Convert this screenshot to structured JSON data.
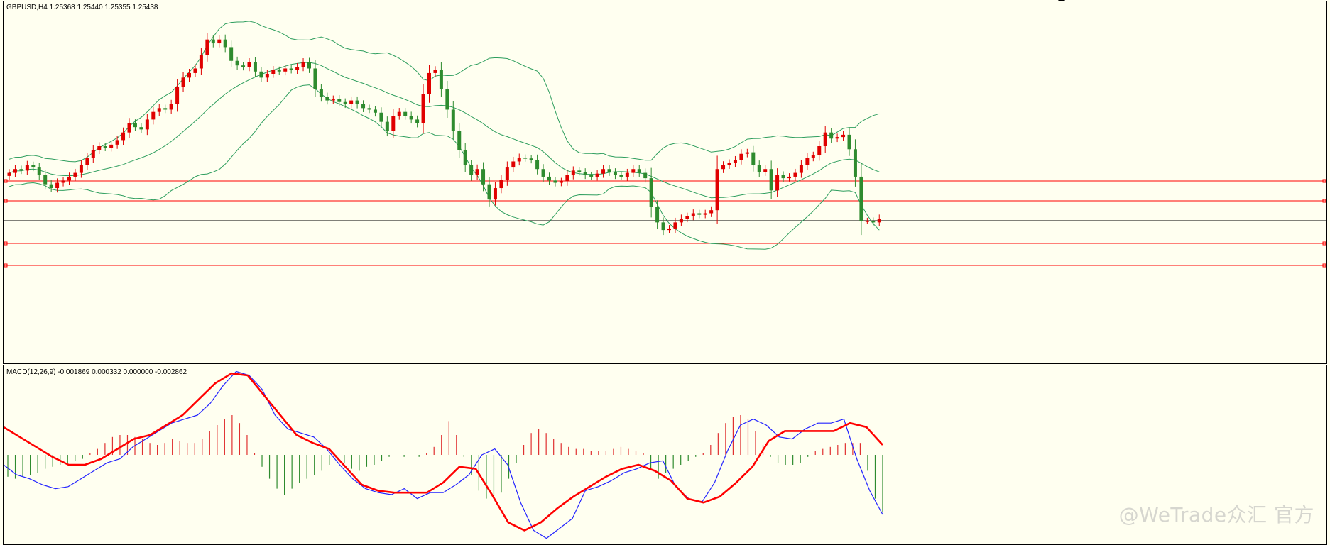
{
  "symbol_header": "GBPUSD,H4  1.25368 1.25440 1.25355 1.25438",
  "macd_header": "MACD(12,26,9) -0.001869 0.000332 0.000000 -0.002862",
  "watermark": "@WeTrade众汇 官方",
  "colors": {
    "background": "#fffff0",
    "bull_candle": "#e00000",
    "bear_candle": "#2e8b2e",
    "bollinger": "#2e9e5e",
    "horizontal_lines": "#ff0000",
    "current_price_line": "#000000",
    "macd_line": "#2323ff",
    "signal_line": "#ff0000",
    "histogram_positive": "#e03030",
    "histogram_negative": "#2e8b2e"
  },
  "chart_data": [
    {
      "type": "candlestick",
      "symbol": "GBPUSD",
      "timeframe": "H4",
      "last_bar": {
        "open": 1.25368,
        "high": 1.2544,
        "low": 1.25355,
        "close": 1.25438
      },
      "ylim": [
        1.2475,
        1.295
      ],
      "grid": false,
      "close_series": [
        1.2725,
        1.273,
        1.2728,
        1.2735,
        1.2732,
        1.2722,
        1.271,
        1.2705,
        1.2712,
        1.2715,
        1.272,
        1.2725,
        1.2735,
        1.2745,
        1.2755,
        1.276,
        1.2758,
        1.2762,
        1.2768,
        1.2778,
        1.279,
        1.2785,
        1.2782,
        1.2795,
        1.2805,
        1.281,
        1.2808,
        1.2815,
        1.2838,
        1.285,
        1.2856,
        1.2862,
        1.288,
        1.29,
        1.2895,
        1.29,
        1.289,
        1.2872,
        1.2866,
        1.2864,
        1.287,
        1.2858,
        1.285,
        1.2855,
        1.286,
        1.2858,
        1.2862,
        1.286,
        1.2864,
        1.287,
        1.2862,
        1.2835,
        1.2825,
        1.282,
        1.2822,
        1.2818,
        1.2815,
        1.282,
        1.2815,
        1.281,
        1.2808,
        1.2804,
        1.2792,
        1.278,
        1.28,
        1.2805,
        1.28,
        1.2795,
        1.279,
        1.2828,
        1.2856,
        1.286,
        1.2835,
        1.2808,
        1.278,
        1.2755,
        1.2735,
        1.2722,
        1.273,
        1.271,
        1.269,
        1.2705,
        1.2716,
        1.2732,
        1.274,
        1.2745,
        1.2744,
        1.2742,
        1.273,
        1.272,
        1.2715,
        1.2712,
        1.2714,
        1.2722,
        1.2728,
        1.2726,
        1.2722,
        1.272,
        1.2724,
        1.273,
        1.2726,
        1.2722,
        1.272,
        1.2725,
        1.273,
        1.2725,
        1.2718,
        1.268,
        1.266,
        1.265,
        1.2652,
        1.266,
        1.2665,
        1.2668,
        1.2672,
        1.267,
        1.2672,
        1.2676,
        1.273,
        1.2735,
        1.2738,
        1.2742,
        1.275,
        1.2752,
        1.2735,
        1.2726,
        1.273,
        1.2702,
        1.2722,
        1.2718,
        1.272,
        1.2725,
        1.2735,
        1.2745,
        1.2748,
        1.276,
        1.2778,
        1.277,
        1.2772,
        1.2775,
        1.2756,
        1.272,
        1.2662,
        1.2662,
        1.266,
        1.2665
      ]
    },
    {
      "type": "line",
      "name": "MACD(12,26,9)",
      "ylim": [
        -0.0045,
        0.0045
      ],
      "histogram": [
        -0.0011,
        -0.0012,
        -0.0011,
        -0.001,
        -0.0009,
        -0.0007,
        -0.0006,
        -0.0005,
        -0.0004,
        -0.0003,
        -0.0002,
        0.0001,
        0.0003,
        0.0006,
        0.0009,
        0.001,
        0.001,
        0.0009,
        0.0008,
        0.0006,
        0.0005,
        0.0006,
        0.0008,
        0.0007,
        0.0006,
        0.0006,
        0.0008,
        0.0012,
        0.0015,
        0.0018,
        0.002,
        0.0016,
        0.001,
        0.0001,
        -0.0006,
        -0.0012,
        -0.0017,
        -0.002,
        -0.0017,
        -0.0014,
        -0.0012,
        -0.001,
        -0.0008,
        -0.0005,
        -0.0002,
        -0.0004,
        -0.0007,
        -0.0008,
        -0.0006,
        -0.0005,
        -0.0003,
        -0.0001,
        0.0,
        -0.0001,
        0.0,
        -0.0001,
        0.0001,
        0.0004,
        0.001,
        0.0017,
        0.001,
        -0.0001,
        -0.001,
        -0.0018,
        -0.0022,
        -0.0022,
        -0.0019,
        -0.0012,
        -0.0004,
        0.0005,
        0.0011,
        0.0013,
        0.0011,
        0.0008,
        0.0006,
        0.0004,
        0.0003,
        0.0003,
        0.0002,
        0.0002,
        0.0002,
        0.0003,
        0.0004,
        0.0003,
        0.0002,
        0.0001,
        -0.0007,
        -0.0012,
        -0.0009,
        -0.0007,
        -0.0005,
        -0.0003,
        -0.0001,
        0.0001,
        0.0005,
        0.0011,
        0.0016,
        0.0019,
        0.002,
        0.0018,
        0.0012,
        0.0005,
        -0.0001,
        -0.0004,
        -0.0005,
        -0.0005,
        -0.0004,
        -0.0001,
        0.0002,
        0.0003,
        0.0004,
        0.0005,
        0.0006,
        0.0006,
        0.0006,
        -0.0008,
        -0.0022,
        -0.0029
      ],
      "series": [
        {
          "name": "MACD",
          "values": [
            -0.0005,
            -0.001,
            -0.0012,
            -0.0015,
            -0.0017,
            -0.0016,
            -0.0012,
            -0.0008,
            -0.0004,
            -0.0002,
            0.0004,
            0.0008,
            0.0012,
            0.0016,
            0.0018,
            0.002,
            0.0026,
            0.0035,
            0.0042,
            0.004,
            0.0033,
            0.002,
            0.0013,
            0.0011,
            0.0009,
            0.0003,
            -0.0005,
            -0.0012,
            -0.0017,
            -0.0019,
            -0.002,
            -0.0017,
            -0.0022,
            -0.0019,
            -0.0019,
            -0.0015,
            -0.001,
            0.0,
            0.0003,
            -0.0005,
            -0.0024,
            -0.0038,
            -0.0042,
            -0.0037,
            -0.0032,
            -0.0018,
            -0.0016,
            -0.0013,
            -0.0009,
            -0.0007,
            -0.0004,
            -0.0003,
            -0.0016,
            -0.0022,
            -0.0024,
            -0.0014,
            0.0002,
            0.0015,
            0.0018,
            0.0015,
            0.0009,
            0.0008,
            0.0013,
            0.0016,
            0.0016,
            0.0018,
            -0.0002,
            -0.0018,
            -0.003
          ]
        },
        {
          "name": "Signal",
          "values": [
            0.0014,
            0.0009,
            0.0004,
            -0.0001,
            -0.0005,
            -0.0005,
            -0.0002,
            0.0003,
            0.0008,
            0.001,
            0.0015,
            0.002,
            0.0028,
            0.0036,
            0.0041,
            0.004,
            0.003,
            0.002,
            0.001,
            0.0006,
            0.0003,
            -0.0006,
            -0.0015,
            -0.0018,
            -0.0019,
            -0.0019,
            -0.0019,
            -0.0014,
            -0.0006,
            -0.0007,
            -0.002,
            -0.0034,
            -0.0038,
            -0.0034,
            -0.0027,
            -0.0021,
            -0.0016,
            -0.0011,
            -0.0007,
            -0.0005,
            -0.0008,
            -0.0013,
            -0.0022,
            -0.0024,
            -0.0021,
            -0.0014,
            -0.0006,
            0.0007,
            0.0012,
            0.0012,
            0.0012,
            0.0012,
            0.0016,
            0.0014,
            0.0005
          ]
        }
      ]
    }
  ]
}
